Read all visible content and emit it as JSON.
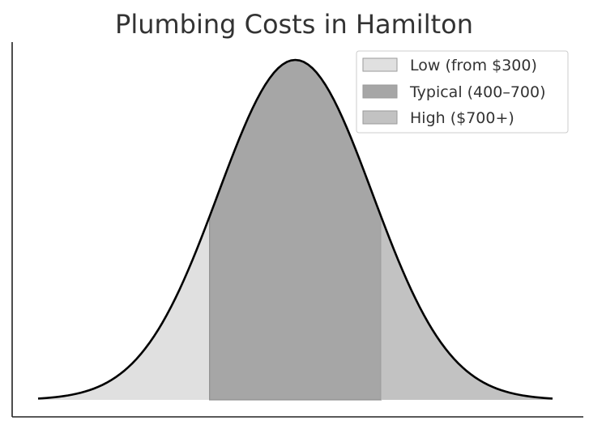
{
  "chart_data": {
    "type": "area",
    "title": "Plumbing Costs in Hamilton",
    "xlabel": "",
    "ylabel": "",
    "x_range": [
      100,
      1000
    ],
    "y_range": [
      0,
      1
    ],
    "distribution": {
      "shape": "normal",
      "mean": 550,
      "sd": 135
    },
    "series": [
      {
        "name": "Low (from $300)",
        "x_range": [
          100,
          400
        ],
        "color": "#e0e0e0"
      },
      {
        "name": "Typical (400–700)",
        "x_range": [
          400,
          700
        ],
        "color": "#a6a6a6"
      },
      {
        "name": "High ($700+)",
        "x_range": [
          700,
          1000
        ],
        "color": "#c2c2c2"
      }
    ],
    "curve_color": "#000000",
    "legend": "top-right",
    "grid": false,
    "axes": {
      "left": true,
      "bottom": true,
      "ticks": false
    }
  }
}
